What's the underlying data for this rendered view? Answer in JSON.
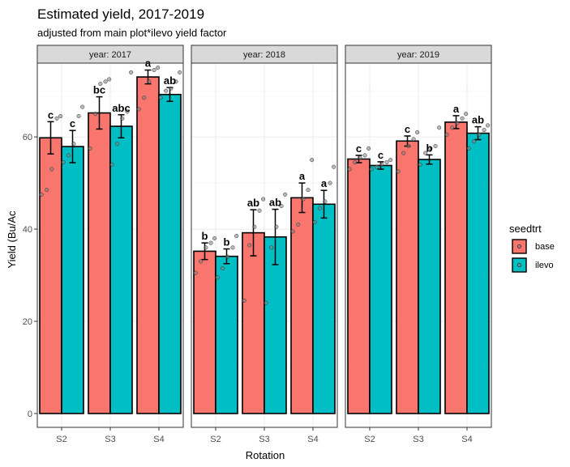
{
  "chart_data": {
    "type": "bar",
    "title": "Estimated yield, 2017-2019",
    "subtitle": "adjusted from main plot*ilevo yield factor",
    "xlabel": "Rotation",
    "ylabel": "Yield (Bu/Ac",
    "ylim": [
      -3,
      76
    ],
    "yticks": [
      0,
      20,
      40,
      60
    ],
    "grid": true,
    "legend": {
      "title": "seedtrt",
      "position": "right",
      "items": [
        {
          "name": "base",
          "color": "#F8766D"
        },
        {
          "name": "ilevo",
          "color": "#00BFC4"
        }
      ]
    },
    "panels": [
      {
        "strip": "year: 2017",
        "categories": [
          "S2",
          "S3",
          "S4"
        ],
        "series": [
          {
            "name": "base",
            "values": [
              59.8,
              65.2,
              73.0
            ],
            "err": [
              3.5,
              3.5,
              1.5
            ],
            "labels": [
              "c",
              "bc",
              "a"
            ],
            "points": [
              [
                47.5,
                48.5,
                53.0,
                64.0,
                64.5
              ],
              [
                57.5,
                65.0,
                71.5,
                72.0,
                72.5
              ],
              [
                66.0,
                68.5,
                72.0,
                74.5,
                75.0
              ]
            ]
          },
          {
            "name": "ilevo",
            "values": [
              57.9,
              62.3,
              69.2
            ],
            "err": [
              3.5,
              2.5,
              1.5
            ],
            "labels": [
              "c",
              "abc",
              "ab"
            ],
            "points": [
              [
                54.5,
                56.0,
                58.5,
                64.5,
                66.5
              ],
              [
                54.0,
                58.5,
                64.0,
                65.5,
                74.0
              ],
              [
                68.5,
                70.0,
                70.5,
                72.0,
                74.0
              ]
            ]
          }
        ]
      },
      {
        "strip": "year: 2018",
        "categories": [
          "S2",
          "S3",
          "S4"
        ],
        "series": [
          {
            "name": "base",
            "values": [
              35.2,
              39.2,
              46.8
            ],
            "err": [
              1.8,
              5.0,
              3.2
            ],
            "labels": [
              "b",
              "ab",
              "a"
            ],
            "points": [
              [
                30.5,
                33.0,
                36.0,
                37.0,
                38.0
              ],
              [
                24.5,
                36.5,
                40.5,
                44.0,
                46.5
              ],
              [
                39.5,
                41.0,
                46.5,
                48.5,
                55.0
              ]
            ]
          },
          {
            "name": "ilevo",
            "values": [
              34.1,
              38.3,
              45.4
            ],
            "err": [
              1.6,
              6.0,
              3.0
            ],
            "labels": [
              "b",
              "ab",
              "a"
            ],
            "points": [
              [
                29.5,
                31.5,
                34.0,
                36.0,
                38.5
              ],
              [
                24.0,
                36.0,
                40.5,
                45.0,
                47.5
              ],
              [
                41.5,
                44.5,
                46.0,
                50.0,
                53.5
              ]
            ]
          }
        ]
      },
      {
        "strip": "year: 2019",
        "categories": [
          "S2",
          "S3",
          "S4"
        ],
        "series": [
          {
            "name": "base",
            "values": [
              55.2,
              59.1,
              63.2
            ],
            "err": [
              0.8,
              1.1,
              1.4
            ],
            "labels": [
              "c",
              "c",
              "a"
            ],
            "points": [
              [
                53.0,
                54.5,
                55.5,
                56.0,
                57.5
              ],
              [
                52.5,
                56.5,
                58.0,
                59.5,
                61.0
              ],
              [
                60.5,
                62.0,
                63.0,
                64.0,
                65.0
              ]
            ]
          },
          {
            "name": "ilevo",
            "values": [
              53.8,
              55.1,
              60.8
            ],
            "err": [
              0.8,
              1.0,
              1.4
            ],
            "labels": [
              "c",
              "b",
              "ab"
            ],
            "points": [
              [
                53.0,
                53.5,
                54.0,
                54.5,
                55.0
              ],
              [
                54.0,
                56.5,
                57.5,
                58.0,
                62.0
              ],
              [
                57.5,
                59.0,
                60.5,
                61.5,
                62.5
              ]
            ]
          }
        ]
      }
    ]
  }
}
